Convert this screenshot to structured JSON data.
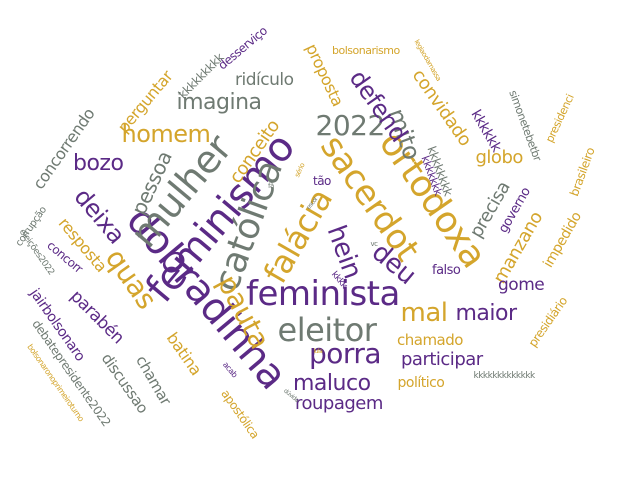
{
  "colors": {
    "purple": "#5b2a86",
    "gold": "#d4a52c",
    "gray": "#6f7a72"
  },
  "words": [
    {
      "text": "feminista",
      "color": "purple"
    },
    {
      "text": "eleitor",
      "color": "gray"
    },
    {
      "text": "dobradinha",
      "color": "purple"
    },
    {
      "text": "feminismo",
      "color": "purple"
    },
    {
      "text": "católica",
      "color": "gray"
    },
    {
      "text": "falácia",
      "color": "gold"
    },
    {
      "text": "ortodoxa",
      "color": "gold"
    },
    {
      "text": "sacerdot",
      "color": "gold"
    },
    {
      "text": "mulher",
      "color": "gray"
    },
    {
      "text": "quas",
      "color": "gold"
    },
    {
      "text": "pauta",
      "color": "gold"
    },
    {
      "text": "porra",
      "color": "purple"
    },
    {
      "text": "mal",
      "color": "gold"
    },
    {
      "text": "2022",
      "color": "gray"
    },
    {
      "text": "homem",
      "color": "gold"
    },
    {
      "text": "imagina",
      "color": "gray"
    },
    {
      "text": "mito",
      "color": "gray"
    },
    {
      "text": "defend",
      "color": "purple"
    },
    {
      "text": "hein",
      "color": "purple"
    },
    {
      "text": "deu",
      "color": "purple"
    },
    {
      "text": "maior",
      "color": "purple"
    },
    {
      "text": "maluco",
      "color": "purple"
    },
    {
      "text": "participar",
      "color": "purple"
    },
    {
      "text": "roupagem",
      "color": "purple"
    },
    {
      "text": "bozo",
      "color": "purple"
    },
    {
      "text": "deixa",
      "color": "purple"
    },
    {
      "text": "pessoa",
      "color": "gray"
    },
    {
      "text": "conceito",
      "color": "gold"
    },
    {
      "text": "ridículo",
      "color": "gray"
    },
    {
      "text": "convidado",
      "color": "gold"
    },
    {
      "text": "proposta",
      "color": "gold"
    },
    {
      "text": "globo",
      "color": "gold"
    },
    {
      "text": "precisa",
      "color": "gray"
    },
    {
      "text": "manzano",
      "color": "gold"
    },
    {
      "text": "gome",
      "color": "purple"
    },
    {
      "text": "chamado",
      "color": "gold"
    },
    {
      "text": "político",
      "color": "gold"
    },
    {
      "text": "falso",
      "color": "purple"
    },
    {
      "text": "impedido",
      "color": "gold"
    },
    {
      "text": "governo",
      "color": "purple"
    },
    {
      "text": "brasileiro",
      "color": "gold"
    },
    {
      "text": "presidiário",
      "color": "gold"
    },
    {
      "text": "kkkkkk",
      "color": "purple"
    },
    {
      "text": "kkkkkkkk",
      "color": "gray"
    },
    {
      "text": "simonetebetbr",
      "color": "gray"
    },
    {
      "text": "presidenci",
      "color": "gold"
    },
    {
      "text": "bolsonarismo",
      "color": "gold"
    },
    {
      "text": "perguntar",
      "color": "gold"
    },
    {
      "text": "kkkkkkkkk",
      "color": "gray"
    },
    {
      "text": "desserviço",
      "color": "purple"
    },
    {
      "text": "concorrendo",
      "color": "gray"
    },
    {
      "text": "resposta",
      "color": "gold"
    },
    {
      "text": "parabén",
      "color": "purple"
    },
    {
      "text": "batina",
      "color": "gold"
    },
    {
      "text": "chamar",
      "color": "gray"
    },
    {
      "text": "discussao",
      "color": "gray"
    },
    {
      "text": "apostólica",
      "color": "gold"
    },
    {
      "text": "jairbolsonaro",
      "color": "purple"
    },
    {
      "text": "debatepresidente2022",
      "color": "gray"
    },
    {
      "text": "concorr",
      "color": "purple"
    },
    {
      "text": "corrupção",
      "color": "gray"
    },
    {
      "text": "eleições2022",
      "color": "gray"
    },
    {
      "text": "bolsonaronoprimeiroturno",
      "color": "gold"
    },
    {
      "text": "kkkkkkkkkkkkk",
      "color": "gray"
    },
    {
      "text": "tão",
      "color": "purple"
    },
    {
      "text": "kkkkkkk",
      "color": "purple"
    },
    {
      "text": "legiaodamassa",
      "color": "gold"
    },
    {
      "text": "kkkk",
      "color": "purple"
    },
    {
      "text": "acab",
      "color": "purple"
    },
    {
      "text": "fã",
      "color": "gray"
    },
    {
      "text": "sério",
      "color": "gold"
    },
    {
      "text": "vc",
      "color": "gray"
    },
    {
      "text": "dúvida",
      "color": "gray"
    },
    {
      "text": "escol",
      "color": "gray"
    },
    {
      "text": "lula",
      "color": "gold"
    }
  ]
}
